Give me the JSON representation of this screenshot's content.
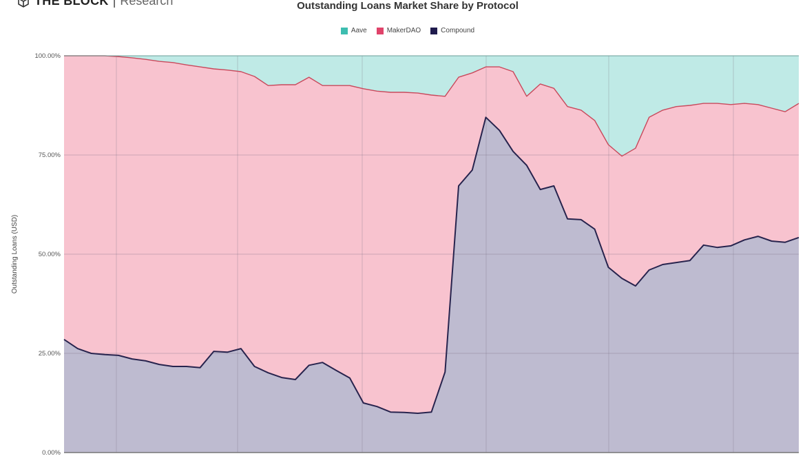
{
  "logo": {
    "brand": "THE BLOCK",
    "separator": "|",
    "sub": "Research"
  },
  "chart_data": {
    "type": "area",
    "stacked": true,
    "normalized": true,
    "title": "Outstanding Loans Market Share by Protocol",
    "xlabel": "",
    "ylabel": "Outstanding Loans (USD)",
    "ylim": [
      0,
      100
    ],
    "yticks": [
      "0.00%",
      "25.00%",
      "50.00%",
      "75.00%",
      "100.00%"
    ],
    "ytick_values": [
      0,
      25,
      50,
      75,
      100
    ],
    "grid": true,
    "legend_position": "top-center",
    "x": [
      0,
      1,
      2,
      3,
      4,
      5,
      6,
      7,
      8,
      9,
      10,
      11,
      12,
      13,
      14,
      15,
      16,
      17,
      18,
      19,
      20,
      21,
      22,
      23,
      24,
      25,
      26,
      27,
      28,
      29,
      30,
      31,
      32,
      33,
      34,
      35,
      36,
      37,
      38,
      39,
      40,
      41,
      42,
      43,
      44,
      45,
      46,
      47,
      48,
      49,
      50,
      51,
      52,
      53,
      54
    ],
    "series": [
      {
        "name": "Compound",
        "color": "#1f1b4d",
        "fill": "#bebbd0",
        "values": [
          28.5,
          26.2,
          25.0,
          24.7,
          24.5,
          23.6,
          23.1,
          22.2,
          21.7,
          21.7,
          21.4,
          25.5,
          25.3,
          26.2,
          21.7,
          20.1,
          18.9,
          18.4,
          22.0,
          22.7,
          20.7,
          18.8,
          12.5,
          11.6,
          10.2,
          10.1,
          9.9,
          10.2,
          20.3,
          67.2,
          71.2,
          84.5,
          81.2,
          75.9,
          72.4,
          66.3,
          67.2,
          58.9,
          58.7,
          56.3,
          46.7,
          43.9,
          42.0,
          46.0,
          47.4,
          47.9,
          48.4,
          52.3,
          51.7,
          52.1,
          53.6,
          54.5,
          53.3,
          53.0,
          54.2
        ]
      },
      {
        "name": "MakerDAO",
        "color": "#e0436a",
        "fill": "#f8c3cf",
        "values": [
          71.5,
          73.8,
          75.0,
          75.3,
          75.3,
          75.9,
          76.0,
          76.4,
          76.6,
          76.0,
          75.8,
          71.2,
          71.1,
          69.8,
          73.1,
          72.4,
          73.8,
          74.3,
          72.6,
          69.8,
          71.8,
          73.7,
          79.2,
          79.5,
          80.6,
          80.7,
          80.7,
          79.9,
          69.5,
          27.4,
          24.5,
          12.7,
          16.0,
          20.1,
          17.4,
          26.6,
          24.6,
          28.3,
          27.6,
          27.4,
          30.9,
          30.8,
          34.7,
          38.5,
          38.9,
          39.3,
          39.1,
          35.7,
          36.3,
          35.6,
          34.4,
          33.2,
          33.5,
          32.9,
          33.8
        ]
      },
      {
        "name": "Aave",
        "color": "#3dbdb0",
        "fill": "#bfeae6",
        "values": [
          0,
          0,
          0,
          0,
          0.2,
          0.5,
          0.9,
          1.4,
          1.7,
          2.3,
          2.8,
          3.3,
          3.6,
          4.0,
          5.2,
          7.5,
          7.3,
          7.3,
          5.4,
          7.5,
          7.5,
          7.5,
          8.3,
          8.9,
          9.2,
          9.2,
          9.4,
          9.9,
          10.2,
          5.4,
          4.3,
          2.8,
          2.8,
          4.0,
          10.2,
          7.1,
          8.2,
          12.8,
          13.7,
          16.3,
          22.4,
          25.3,
          23.3,
          15.5,
          13.7,
          12.8,
          12.5,
          12.0,
          12.0,
          12.3,
          12.0,
          12.3,
          13.2,
          14.1,
          12.0
        ]
      }
    ],
    "legend": [
      "Aave",
      "MakerDAO",
      "Compound"
    ]
  }
}
